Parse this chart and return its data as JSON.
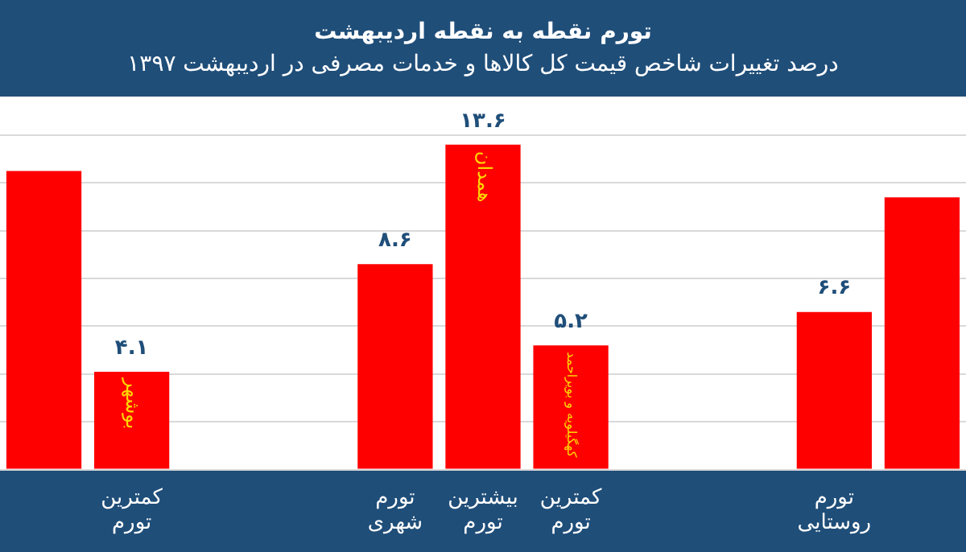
{
  "chart_data": {
    "type": "bar",
    "title": "تورم نقطه به نقطه اردیبهشت",
    "subtitle": "درصد تغییرات شاخص قیمت کل کالاها و خدمات مصرفی در اردیبهشت ۱۳۹۷",
    "categories": [
      null,
      "کمترین تورم",
      null,
      null,
      "تورم شهری",
      "بیشترین تورم",
      "کمترین تورم",
      null,
      null,
      "تورم روستایی",
      null
    ],
    "values": [
      12.5,
      4.1,
      null,
      null,
      8.6,
      13.6,
      5.2,
      null,
      null,
      6.6,
      11.4
    ],
    "value_labels": [
      null,
      "۴.۱",
      null,
      null,
      "۸.۶",
      "۱۳.۶",
      "۵.۲",
      null,
      null,
      "۶.۶",
      null
    ],
    "color": "#ff0000",
    "tick_labels": "x",
    "grid": "y",
    "legend": false,
    "annotations": [
      {
        "text": "بوشهر",
        "x": "کمترین تورم",
        "y": 4.1
      },
      {
        "text": "همدان",
        "x": "بیشترین تورم",
        "y": 13.6
      },
      {
        "text": "کهگیلویه و بویراحمد",
        "y": 5.2
      }
    ]
  }
}
